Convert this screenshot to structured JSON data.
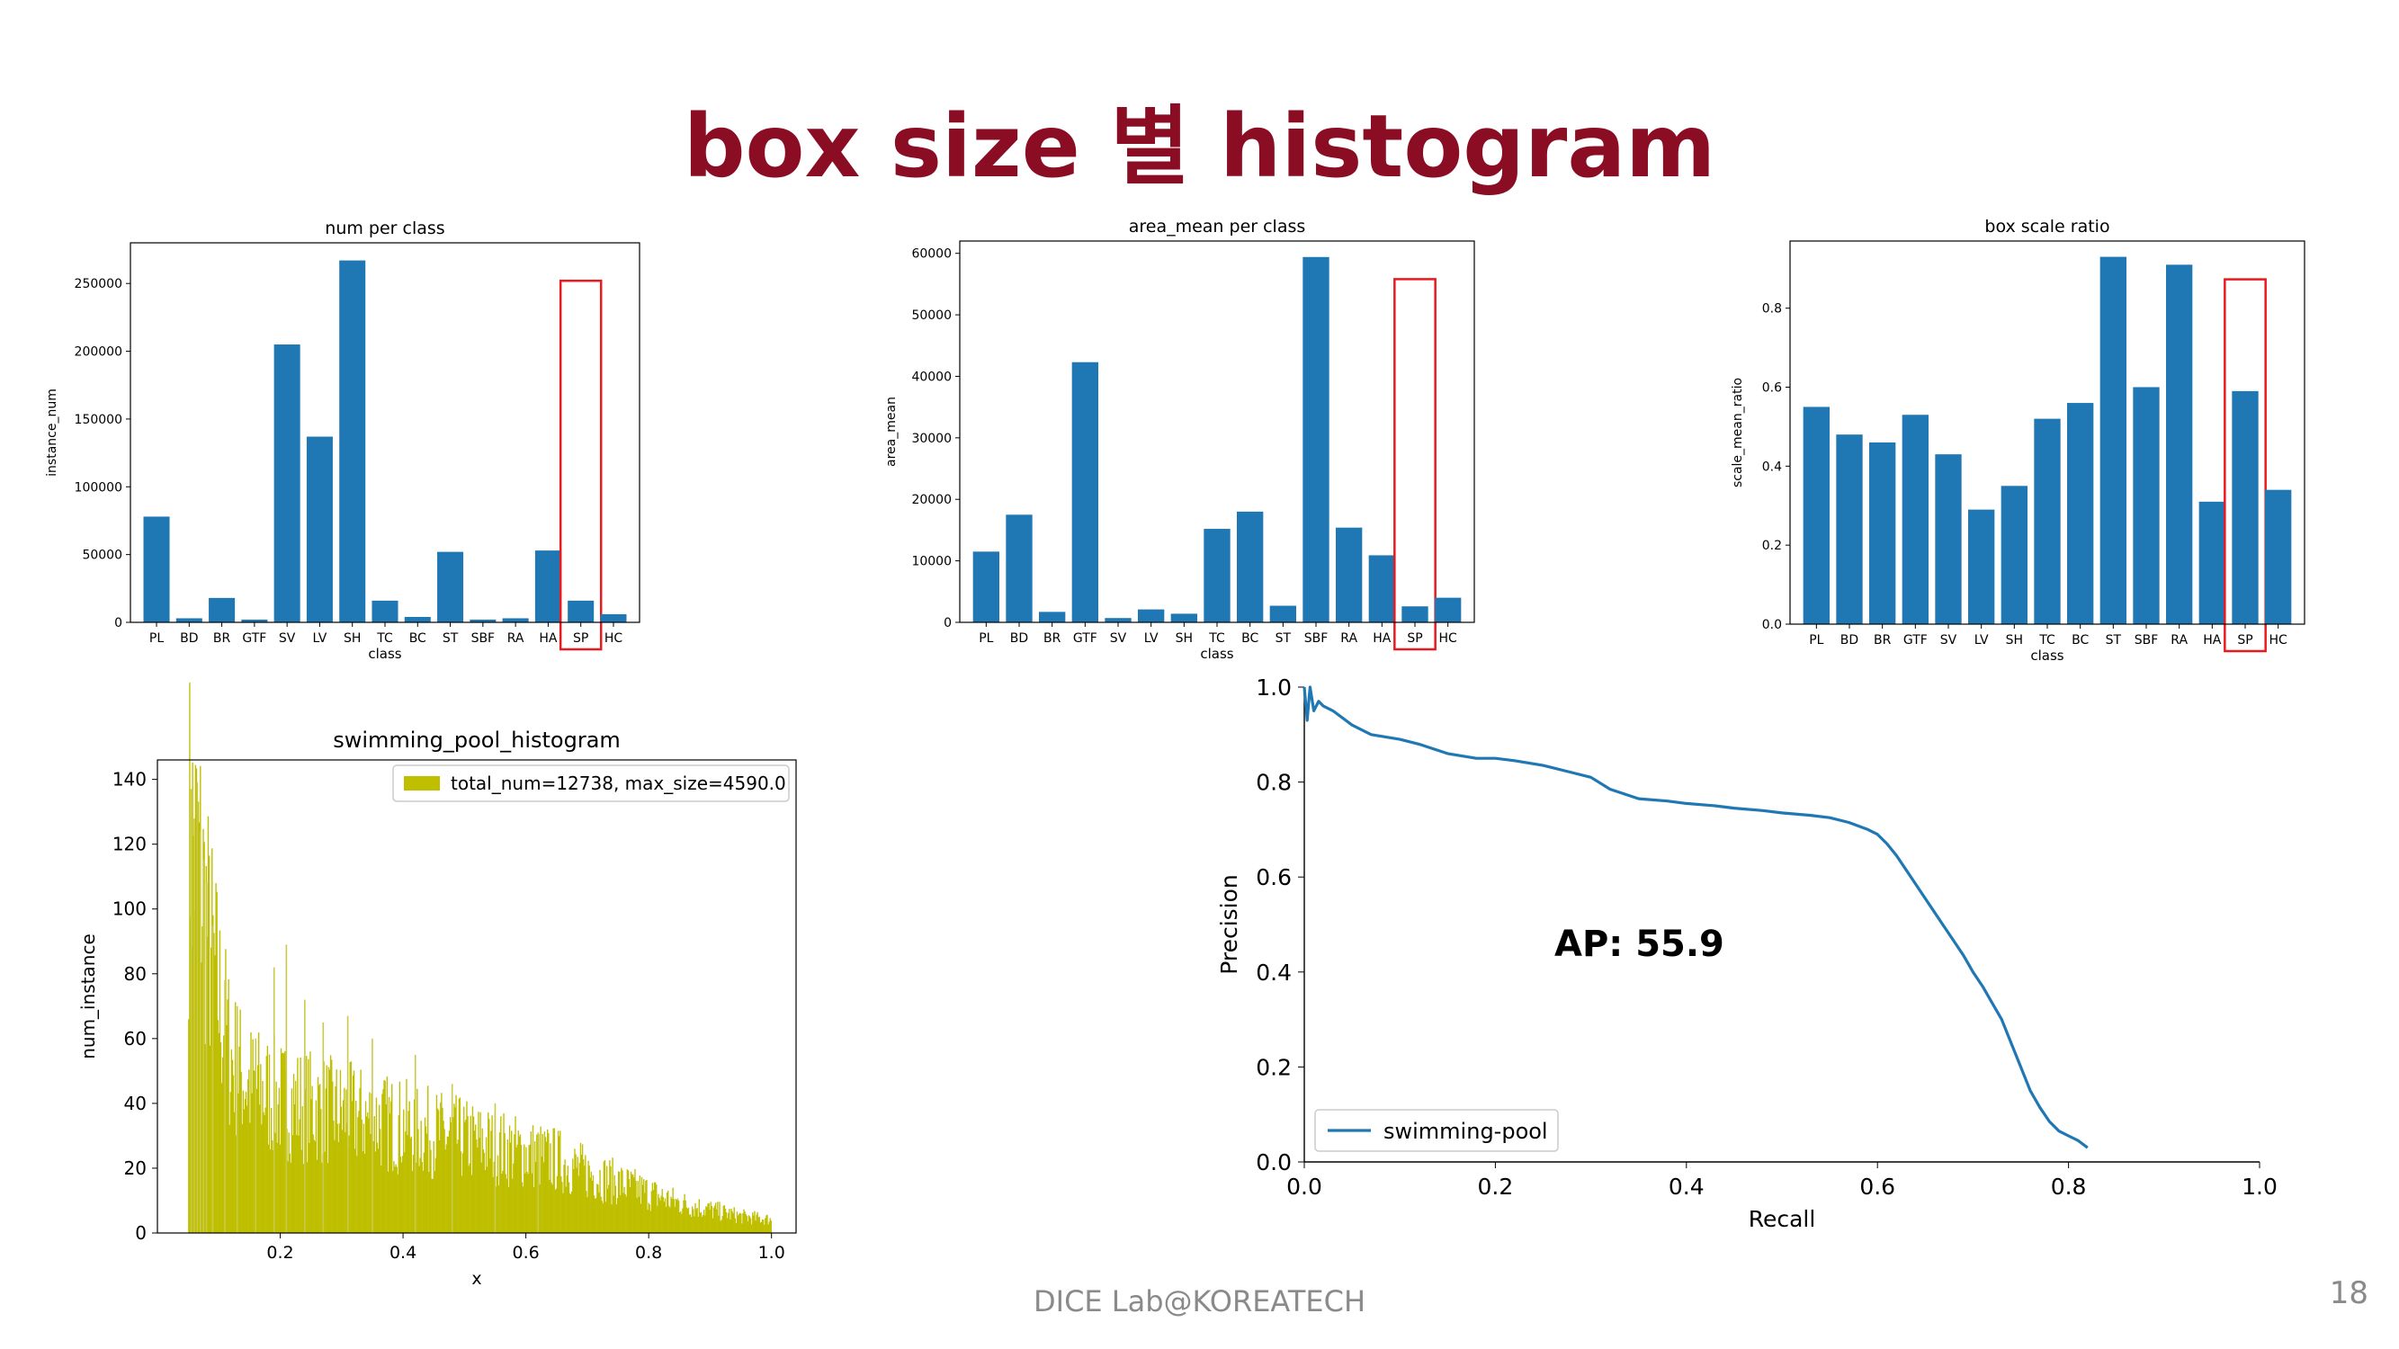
{
  "slide": {
    "title": "box size 별 histogram",
    "footer": "DICE Lab@KOREATECH",
    "page_number": "18"
  },
  "colors": {
    "bar": "#1f77b4",
    "histogram": "#bfbf00",
    "highlight": "#e8191f",
    "title": "#8b0d23"
  },
  "chart_data": [
    {
      "id": "num",
      "type": "bar",
      "title": "num per class",
      "xlabel": "class",
      "ylabel": "instance_num",
      "categories": [
        "PL",
        "BD",
        "BR",
        "GTF",
        "SV",
        "LV",
        "SH",
        "TC",
        "BC",
        "ST",
        "SBF",
        "RA",
        "HA",
        "SP",
        "HC"
      ],
      "values": [
        78000,
        3000,
        18000,
        2000,
        205000,
        137000,
        267000,
        16000,
        4000,
        52000,
        2000,
        3000,
        53000,
        16000,
        6000
      ],
      "ylim": [
        0,
        280000
      ],
      "yticks": [
        0,
        50000,
        100000,
        150000,
        200000,
        250000
      ],
      "highlight": "SP"
    },
    {
      "id": "area",
      "type": "bar",
      "title": "area_mean per class",
      "xlabel": "class",
      "ylabel": "area_mean",
      "categories": [
        "PL",
        "BD",
        "BR",
        "GTF",
        "SV",
        "LV",
        "SH",
        "TC",
        "BC",
        "ST",
        "SBF",
        "RA",
        "HA",
        "SP",
        "HC"
      ],
      "values": [
        11500,
        17500,
        1700,
        42300,
        700,
        2100,
        1400,
        15200,
        18000,
        2700,
        59400,
        15400,
        10900,
        2600,
        4000
      ],
      "ylim": [
        0,
        62000
      ],
      "yticks": [
        0,
        10000,
        20000,
        30000,
        40000,
        50000,
        60000
      ],
      "highlight": "SP"
    },
    {
      "id": "scale",
      "type": "bar",
      "title": "box scale ratio",
      "xlabel": "class",
      "ylabel": "scale_mean_ratio",
      "categories": [
        "PL",
        "BD",
        "BR",
        "GTF",
        "SV",
        "LV",
        "SH",
        "TC",
        "BC",
        "ST",
        "SBF",
        "RA",
        "HA",
        "SP",
        "HC"
      ],
      "values": [
        0.55,
        0.48,
        0.46,
        0.53,
        0.43,
        0.29,
        0.35,
        0.52,
        0.56,
        0.93,
        0.6,
        0.91,
        0.31,
        0.59,
        0.34
      ],
      "ylim": [
        0,
        0.97
      ],
      "yticks": [
        0.0,
        0.2,
        0.4,
        0.6,
        0.8
      ],
      "highlight": "SP"
    },
    {
      "id": "hist",
      "type": "bar",
      "title": "swimming_pool_histogram",
      "xlabel": "x",
      "ylabel": "num_instance",
      "legend": "total_num=12738, max_size=4590.0",
      "legend_position": "top-right",
      "xlim": [
        0.0,
        1.04
      ],
      "ylim": [
        0,
        146
      ],
      "xticks": [
        0.2,
        0.4,
        0.6,
        0.8,
        1.0
      ],
      "yticks": [
        0,
        20,
        40,
        60,
        80,
        100,
        120,
        140
      ],
      "envelope_x": [
        0.05,
        0.06,
        0.07,
        0.08,
        0.1,
        0.12,
        0.15,
        0.2,
        0.25,
        0.3,
        0.35,
        0.4,
        0.45,
        0.5,
        0.55,
        0.6,
        0.65,
        0.7,
        0.75,
        0.8,
        0.85,
        0.9,
        0.95,
        1.0
      ],
      "envelope_y": [
        120,
        115,
        108,
        92,
        70,
        52,
        44,
        40,
        38,
        36,
        34,
        32,
        30,
        28,
        26,
        24,
        22,
        18,
        15,
        12,
        9,
        7,
        5,
        4
      ],
      "peaks_x": [
        0.055,
        0.06,
        0.065,
        0.07,
        0.075,
        0.08,
        0.09,
        0.11,
        0.13,
        0.16,
        0.19,
        0.21,
        0.24,
        0.27,
        0.31,
        0.35,
        0.42,
        0.48,
        0.55,
        0.62
      ],
      "peaks_y": [
        137,
        128,
        139,
        124,
        115,
        108,
        95,
        78,
        70,
        60,
        82,
        89,
        72,
        65,
        67,
        60,
        55,
        46,
        40,
        31
      ]
    },
    {
      "id": "pr",
      "type": "line",
      "xlabel": "Recall",
      "ylabel": "Precision",
      "annotation": "AP: 55.9",
      "series": [
        {
          "name": "swimming-pool",
          "x": [
            0.0,
            0.003,
            0.006,
            0.01,
            0.015,
            0.02,
            0.03,
            0.05,
            0.07,
            0.1,
            0.12,
            0.15,
            0.18,
            0.2,
            0.22,
            0.25,
            0.28,
            0.3,
            0.32,
            0.35,
            0.38,
            0.4,
            0.43,
            0.45,
            0.48,
            0.5,
            0.53,
            0.55,
            0.57,
            0.59,
            0.6,
            0.61,
            0.62,
            0.63,
            0.64,
            0.65,
            0.66,
            0.67,
            0.68,
            0.69,
            0.7,
            0.71,
            0.72,
            0.73,
            0.74,
            0.75,
            0.76,
            0.77,
            0.78,
            0.79,
            0.8,
            0.81,
            0.82
          ],
          "y": [
            1.0,
            0.93,
            1.0,
            0.95,
            0.97,
            0.96,
            0.95,
            0.92,
            0.9,
            0.89,
            0.88,
            0.86,
            0.85,
            0.85,
            0.845,
            0.835,
            0.82,
            0.81,
            0.785,
            0.765,
            0.76,
            0.755,
            0.75,
            0.745,
            0.74,
            0.735,
            0.73,
            0.725,
            0.715,
            0.7,
            0.69,
            0.67,
            0.645,
            0.615,
            0.585,
            0.555,
            0.525,
            0.495,
            0.465,
            0.435,
            0.4,
            0.37,
            0.335,
            0.3,
            0.25,
            0.2,
            0.15,
            0.115,
            0.085,
            0.065,
            0.055,
            0.045,
            0.03
          ]
        }
      ],
      "xlim": [
        0.0,
        1.0
      ],
      "ylim": [
        0.0,
        1.0
      ],
      "xticks": [
        0.0,
        0.2,
        0.4,
        0.6,
        0.8,
        1.0
      ],
      "yticks": [
        0.0,
        0.2,
        0.4,
        0.6,
        0.8,
        1.0
      ],
      "legend_position": "lower-left"
    }
  ]
}
